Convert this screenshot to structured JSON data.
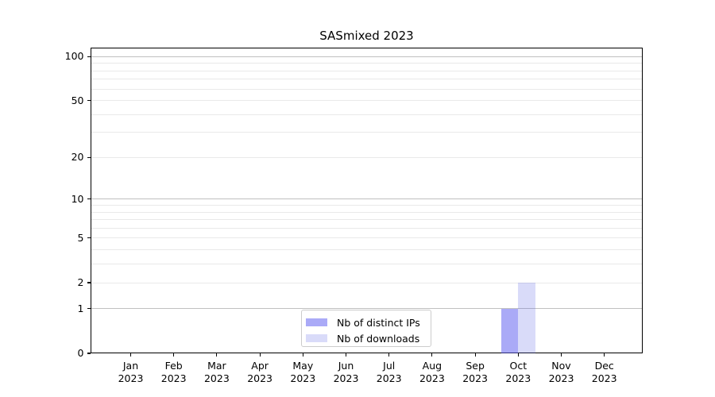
{
  "chart_data": {
    "type": "bar",
    "title": "SASmixed 2023",
    "x_ticks": [
      {
        "month": "Jan",
        "year": "2023"
      },
      {
        "month": "Feb",
        "year": "2023"
      },
      {
        "month": "Mar",
        "year": "2023"
      },
      {
        "month": "Apr",
        "year": "2023"
      },
      {
        "month": "May",
        "year": "2023"
      },
      {
        "month": "Jun",
        "year": "2023"
      },
      {
        "month": "Jul",
        "year": "2023"
      },
      {
        "month": "Aug",
        "year": "2023"
      },
      {
        "month": "Sep",
        "year": "2023"
      },
      {
        "month": "Oct",
        "year": "2023"
      },
      {
        "month": "Nov",
        "year": "2023"
      },
      {
        "month": "Dec",
        "year": "2023"
      }
    ],
    "series": [
      {
        "name": "Nb of distinct IPs",
        "color": "#5555EF",
        "alpha": 0.5,
        "values": [
          0,
          0,
          0,
          0,
          0,
          0,
          0,
          0,
          0,
          1,
          0,
          0
        ]
      },
      {
        "name": "Nb of downloads",
        "color": "#525BE4",
        "alpha": 0.22,
        "values": [
          0,
          0,
          0,
          0,
          0,
          0,
          0,
          0,
          0,
          2,
          0,
          0
        ]
      }
    ],
    "yscale": "log1p",
    "ylim": [
      0,
      115
    ],
    "y_tick_values": [
      0,
      1,
      2,
      5,
      10,
      20,
      50,
      100
    ],
    "y_tick_labels": [
      "0",
      "1",
      "2",
      "5",
      "10",
      "20",
      "50",
      "100"
    ],
    "grid": {
      "major_values": [
        1,
        10,
        100
      ],
      "minor_values": [
        2,
        3,
        4,
        5,
        6,
        7,
        8,
        9,
        20,
        30,
        40,
        50,
        60,
        70,
        80,
        90
      ],
      "major_color": "#c0c0c0",
      "minor_color": "#e9e9e9"
    },
    "legend": {
      "entries": [
        "Nb of distinct IPs",
        "Nb of downloads"
      ],
      "location": "lower center"
    }
  }
}
